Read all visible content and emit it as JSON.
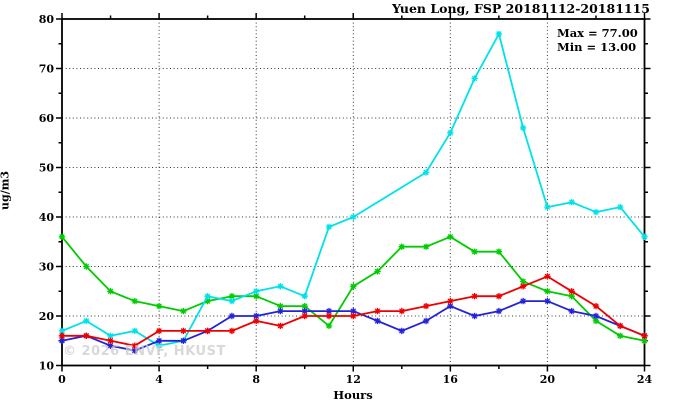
{
  "chart": {
    "title": "Yuen Long, FSP 20181112-20181115",
    "watermark": "© 2026 ENVF, HKUST",
    "annotations": {
      "max": "Max = 77.00",
      "min": "Min = 13.00"
    }
  },
  "chart_data": {
    "type": "line",
    "title": "Yuen Long, FSP 20181112-20181115",
    "xlabel": "Hours",
    "ylabel": "ug/m3",
    "xlim": [
      0,
      24
    ],
    "ylim": [
      10,
      80
    ],
    "x_ticks": [
      0,
      4,
      8,
      12,
      16,
      20,
      24
    ],
    "y_ticks": [
      10,
      20,
      30,
      40,
      50,
      60,
      70,
      80
    ],
    "x_minor_ticks": [
      2,
      6,
      10,
      14,
      18,
      22
    ],
    "y_minor_ticks": [
      15,
      25,
      35,
      45,
      55,
      65,
      75
    ],
    "grid": "dotted",
    "legend_position": "none",
    "marker": "asterisk",
    "max_value": 77.0,
    "min_value": 13.0,
    "x": [
      0,
      1,
      2,
      3,
      4,
      5,
      6,
      7,
      8,
      9,
      10,
      11,
      12,
      13,
      14,
      15,
      16,
      17,
      18,
      19,
      20,
      21,
      22,
      23,
      24
    ],
    "series": [
      {
        "name": "series-green",
        "color": "#00cc00",
        "values": [
          36,
          30,
          25,
          23,
          22,
          21,
          23,
          24,
          24,
          22,
          22,
          18,
          26,
          29,
          34,
          34,
          36,
          33,
          33,
          27,
          25,
          24,
          19,
          16,
          15
        ]
      },
      {
        "name": "series-cyan",
        "color": "#00e2e8",
        "values": [
          17,
          19,
          16,
          17,
          14,
          15,
          24,
          23,
          25,
          26,
          24,
          38,
          40,
          null,
          null,
          49,
          57,
          68,
          77,
          58,
          42,
          43,
          41,
          42,
          36
        ]
      },
      {
        "name": "series-blue",
        "color": "#2323d6",
        "values": [
          15,
          16,
          14,
          13,
          15,
          15,
          17,
          20,
          20,
          21,
          21,
          21,
          21,
          19,
          17,
          19,
          22,
          20,
          21,
          23,
          23,
          21,
          20,
          18,
          16
        ]
      },
      {
        "name": "series-red",
        "color": "#ee0000",
        "values": [
          16,
          16,
          15,
          14,
          17,
          17,
          17,
          17,
          19,
          18,
          20,
          20,
          20,
          21,
          21,
          22,
          23,
          24,
          24,
          26,
          28,
          25,
          22,
          18,
          16
        ]
      }
    ]
  }
}
